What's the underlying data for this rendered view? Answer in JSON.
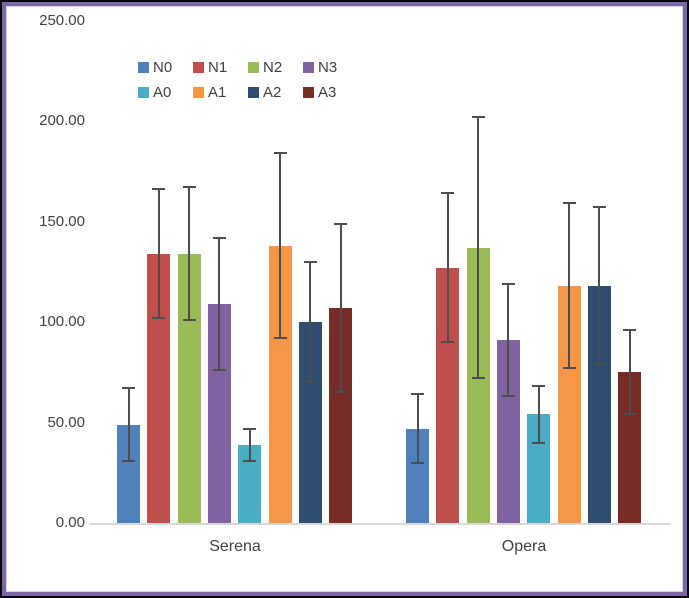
{
  "window": {
    "border_color": "#7a68a6",
    "outer_edge_color": "#07070e",
    "background": "#ffffff"
  },
  "chart_data": {
    "type": "bar",
    "title": "",
    "xlabel": "",
    "ylabel": "",
    "categories": [
      "Serena",
      "Opera"
    ],
    "y_ticks": [
      "250.00",
      "200.00",
      "150.00",
      "100.00",
      "50.00",
      "0.00"
    ],
    "ylim": [
      0,
      250
    ],
    "grid": false,
    "legend_position": "top-center-two-rows",
    "legend_rows": [
      [
        "N0",
        "N1",
        "N2",
        "N3"
      ],
      [
        "A0",
        "A1",
        "A2",
        "A3"
      ]
    ],
    "error_bars": true,
    "error_bar_color": "#4d4d4d",
    "axis_line_color": "#d7d7d7",
    "series": [
      {
        "name": "N0",
        "color": "#4F81BD",
        "values": [
          49,
          47
        ],
        "errors": [
          18,
          17
        ]
      },
      {
        "name": "N1",
        "color": "#C0504D",
        "values": [
          134,
          127
        ],
        "errors": [
          32,
          37
        ]
      },
      {
        "name": "N2",
        "color": "#9BBB59",
        "values": [
          134,
          137
        ],
        "errors": [
          33,
          65
        ]
      },
      {
        "name": "N3",
        "color": "#8064A2",
        "values": [
          109,
          91
        ],
        "errors": [
          33,
          28
        ]
      },
      {
        "name": "A0",
        "color": "#4BACC6",
        "values": [
          39,
          54
        ],
        "errors": [
          8,
          14
        ]
      },
      {
        "name": "A1",
        "color": "#F79646",
        "values": [
          138,
          118
        ],
        "errors": [
          46,
          41
        ]
      },
      {
        "name": "A2",
        "color": "#2E4D71",
        "values": [
          100,
          118
        ],
        "errors": [
          30,
          39
        ]
      },
      {
        "name": "A3",
        "color": "#772C27",
        "values": [
          107,
          75
        ],
        "errors": [
          42,
          21
        ]
      }
    ]
  }
}
